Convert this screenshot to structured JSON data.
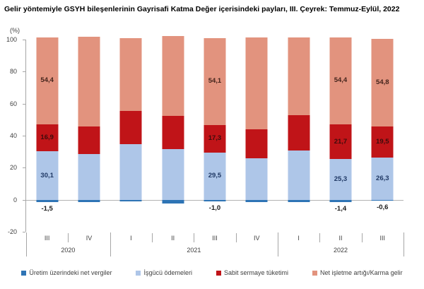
{
  "title": "Gelir yöntemiyle GSYH bileşenlerinin Gayrisafi Katma Değer içerisindeki payları, III. Çeyrek: Temmuz-Eylül, 2022",
  "y_axis": {
    "unit_label": "(%)",
    "ticks": [
      100,
      80,
      60,
      40,
      20,
      0,
      -20
    ]
  },
  "x_axis": {
    "quarters": [
      "III",
      "IV",
      "I",
      "II",
      "III",
      "IV",
      "I",
      "II",
      "III"
    ],
    "year_groups": [
      {
        "label": "2020",
        "span": 2
      },
      {
        "label": "2021",
        "span": 4
      },
      {
        "label": "2022",
        "span": 3
      }
    ]
  },
  "legend": [
    {
      "label": "Üretim üzerindeki net vergiler",
      "color": "#2e74b5"
    },
    {
      "label": "İşgücü ödemeleri",
      "color": "#aec6e8"
    },
    {
      "label": "Sabit sermaye tüketimi",
      "color": "#c01418"
    },
    {
      "label": "Net işletme artığı/Karma gelir",
      "color": "#e2937e"
    }
  ],
  "chart_data": {
    "type": "bar",
    "stacked": true,
    "title": "Gelir yöntemiyle GSYH bileşenlerinin Gayrisafi Katma Değer içerisindeki payları, III. Çeyrek: Temmuz-Eylül, 2022",
    "ylabel": "(%)",
    "ylim": [
      -20,
      100
    ],
    "grid": false,
    "legend_position": "bottom",
    "categories": [
      "2020 III",
      "2020 IV",
      "2021 I",
      "2021 II",
      "2021 III",
      "2021 IV",
      "2022 I",
      "2022 II",
      "2022 III"
    ],
    "series": [
      {
        "name": "Üretim üzerindeki net vergiler",
        "color": "#2e74b5",
        "label_color": "#1a1a1a",
        "values": [
          -1.5,
          -1.6,
          -0.9,
          -2.4,
          -1.0,
          -1.5,
          -1.3,
          -1.4,
          -0.6
        ]
      },
      {
        "name": "İşgücü ödemeleri",
        "color": "#aec6e8",
        "label_color": "#1f3864",
        "values": [
          30.1,
          28.4,
          34.5,
          31.4,
          29.5,
          25.8,
          30.7,
          25.3,
          26.3
        ]
      },
      {
        "name": "Sabit sermaye tüketimi",
        "color": "#c01418",
        "label_color": "#3d0c0c",
        "values": [
          16.9,
          17.5,
          21.0,
          21.0,
          17.3,
          18.2,
          22.1,
          21.7,
          19.5
        ]
      },
      {
        "name": "Net işletme artığı/Karma gelir",
        "color": "#e2937e",
        "label_color": "#44241c",
        "values": [
          54.4,
          55.7,
          45.4,
          50.0,
          54.1,
          57.5,
          48.5,
          54.4,
          54.8
        ]
      }
    ],
    "labeled_bar_indices": [
      0,
      4,
      7,
      8
    ],
    "visible_data_labels": {
      "2020 III": {
        "net_vergiler": "-1,5",
        "isgucu": "30,1",
        "sabit_sermaye": "16,9",
        "net_isletme": "54,4"
      },
      "2021 III": {
        "net_vergiler": "-1,0",
        "isgucu": "29,5",
        "sabit_sermaye": "17,3",
        "net_isletme": "54,1"
      },
      "2022 II": {
        "net_vergiler": "-1,4",
        "isgucu": "25,3",
        "sabit_sermaye": "21,7",
        "net_isletme": "54,4"
      },
      "2022 III": {
        "net_vergiler": "-0,6",
        "isgucu": "26,3",
        "sabit_sermaye": "19,5",
        "net_isletme": "54,8"
      }
    }
  }
}
